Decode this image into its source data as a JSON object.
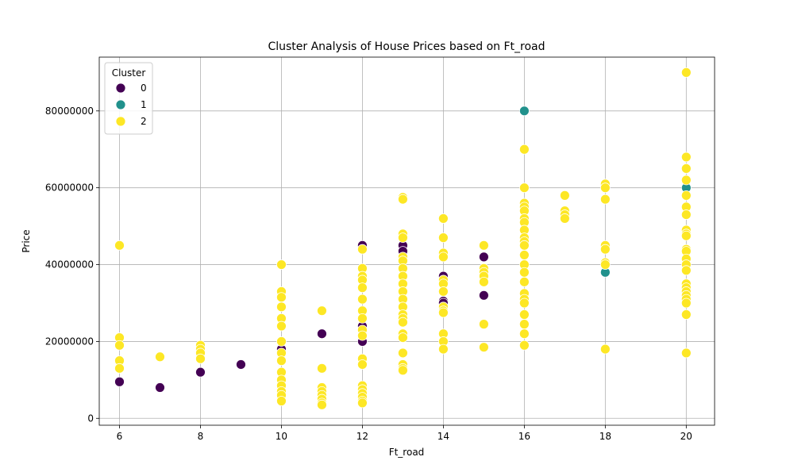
{
  "chart_data": {
    "type": "scatter",
    "title": "Cluster Analysis of House Prices based on Ft_road",
    "xlabel": "Ft_road",
    "ylabel": "Price",
    "xlim": [
      5.5,
      20.7
    ],
    "ylim": [
      -1800000,
      94000000
    ],
    "xticks": [
      6,
      8,
      10,
      12,
      14,
      16,
      18,
      20
    ],
    "yticks": [
      0,
      20000000,
      40000000,
      60000000,
      80000000
    ],
    "xtick_labels": [
      "6",
      "8",
      "10",
      "12",
      "14",
      "16",
      "18",
      "20"
    ],
    "ytick_labels": [
      "0",
      "20000000",
      "40000000",
      "60000000",
      "80000000"
    ],
    "grid": true,
    "legend": {
      "title": "Cluster",
      "placement": "top-left",
      "entries": [
        "0",
        "1",
        "2"
      ]
    },
    "series": [
      {
        "name": "0",
        "color": "#440154",
        "points": [
          [
            6,
            9500000
          ],
          [
            7,
            8000000
          ],
          [
            8,
            12000000
          ],
          [
            9,
            14000000
          ],
          [
            10,
            18000000
          ],
          [
            11,
            22000000
          ],
          [
            12,
            45000000
          ],
          [
            12,
            24000000
          ],
          [
            12,
            20000000
          ],
          [
            13,
            45000000
          ],
          [
            13,
            43500000
          ],
          [
            14,
            37000000
          ],
          [
            14,
            30500000
          ],
          [
            14,
            30000000
          ],
          [
            15,
            42000000
          ],
          [
            15,
            32000000
          ]
        ]
      },
      {
        "name": "1",
        "color": "#21918c",
        "points": [
          [
            16,
            80000000
          ],
          [
            20,
            60000000
          ],
          [
            18,
            38000000
          ]
        ]
      },
      {
        "name": "2",
        "color": "#fde725",
        "points": [
          [
            6,
            45000000
          ],
          [
            6,
            21000000
          ],
          [
            6,
            19000000
          ],
          [
            6,
            15000000
          ],
          [
            6,
            13000000
          ],
          [
            7,
            16000000
          ],
          [
            8,
            19000000
          ],
          [
            8,
            18000000
          ],
          [
            8,
            17000000
          ],
          [
            8,
            15500000
          ],
          [
            10,
            40000000
          ],
          [
            10,
            33000000
          ],
          [
            10,
            31500000
          ],
          [
            10,
            29000000
          ],
          [
            10,
            26000000
          ],
          [
            10,
            24000000
          ],
          [
            10,
            20000000
          ],
          [
            10,
            17000000
          ],
          [
            10,
            15000000
          ],
          [
            10,
            12000000
          ],
          [
            10,
            10000000
          ],
          [
            10,
            8500000
          ],
          [
            10,
            7000000
          ],
          [
            10,
            6000000
          ],
          [
            10,
            4500000
          ],
          [
            11,
            28000000
          ],
          [
            11,
            13000000
          ],
          [
            11,
            8000000
          ],
          [
            11,
            7000000
          ],
          [
            11,
            6000000
          ],
          [
            11,
            5000000
          ],
          [
            11,
            4000000
          ],
          [
            11,
            3500000
          ],
          [
            12,
            44000000
          ],
          [
            12,
            39000000
          ],
          [
            12,
            37000000
          ],
          [
            12,
            36000000
          ],
          [
            12,
            34000000
          ],
          [
            12,
            31000000
          ],
          [
            12,
            28000000
          ],
          [
            12,
            26000000
          ],
          [
            12,
            23000000
          ],
          [
            12,
            21500000
          ],
          [
            12,
            15500000
          ],
          [
            12,
            14000000
          ],
          [
            12,
            8500000
          ],
          [
            12,
            7500000
          ],
          [
            12,
            6500000
          ],
          [
            12,
            5500000
          ],
          [
            12,
            4500000
          ],
          [
            12,
            4000000
          ],
          [
            13,
            57500000
          ],
          [
            13,
            57000000
          ],
          [
            13,
            48000000
          ],
          [
            13,
            47000000
          ],
          [
            13,
            42000000
          ],
          [
            13,
            41000000
          ],
          [
            13,
            39000000
          ],
          [
            13,
            37000000
          ],
          [
            13,
            35000000
          ],
          [
            13,
            33000000
          ],
          [
            13,
            31000000
          ],
          [
            13,
            29000000
          ],
          [
            13,
            27000000
          ],
          [
            13,
            26000000
          ],
          [
            13,
            25000000
          ],
          [
            13,
            22000000
          ],
          [
            13,
            21000000
          ],
          [
            13,
            17000000
          ],
          [
            13,
            14000000
          ],
          [
            13,
            13000000
          ],
          [
            13,
            12500000
          ],
          [
            14,
            52000000
          ],
          [
            14,
            47000000
          ],
          [
            14,
            43000000
          ],
          [
            14,
            42000000
          ],
          [
            14,
            36000000
          ],
          [
            14,
            35000000
          ],
          [
            14,
            33000000
          ],
          [
            14,
            29000000
          ],
          [
            14,
            28000000
          ],
          [
            14,
            27500000
          ],
          [
            14,
            22000000
          ],
          [
            14,
            20000000
          ],
          [
            14,
            18000000
          ],
          [
            15,
            45000000
          ],
          [
            15,
            39000000
          ],
          [
            15,
            38000000
          ],
          [
            15,
            37000000
          ],
          [
            15,
            35500000
          ],
          [
            15,
            24500000
          ],
          [
            15,
            18500000
          ],
          [
            16,
            70000000
          ],
          [
            16,
            60000000
          ],
          [
            16,
            56000000
          ],
          [
            16,
            55000000
          ],
          [
            16,
            54000000
          ],
          [
            16,
            52000000
          ],
          [
            16,
            51000000
          ],
          [
            16,
            49000000
          ],
          [
            16,
            47000000
          ],
          [
            16,
            46000000
          ],
          [
            16,
            45000000
          ],
          [
            16,
            42500000
          ],
          [
            16,
            40000000
          ],
          [
            16,
            38000000
          ],
          [
            16,
            35500000
          ],
          [
            16,
            32500000
          ],
          [
            16,
            31000000
          ],
          [
            16,
            30000000
          ],
          [
            16,
            27000000
          ],
          [
            16,
            24500000
          ],
          [
            16,
            22000000
          ],
          [
            16,
            19000000
          ],
          [
            17,
            58000000
          ],
          [
            17,
            54000000
          ],
          [
            17,
            53000000
          ],
          [
            17,
            52000000
          ],
          [
            18,
            61000000
          ],
          [
            18,
            60000000
          ],
          [
            18,
            57000000
          ],
          [
            18,
            45000000
          ],
          [
            18,
            44000000
          ],
          [
            18,
            40500000
          ],
          [
            18,
            40000000
          ],
          [
            18,
            18000000
          ],
          [
            20,
            90000000
          ],
          [
            20,
            68000000
          ],
          [
            20,
            65000000
          ],
          [
            20,
            62000000
          ],
          [
            20,
            58000000
          ],
          [
            20,
            55000000
          ],
          [
            20,
            53000000
          ],
          [
            20,
            49000000
          ],
          [
            20,
            48000000
          ],
          [
            20,
            47500000
          ],
          [
            20,
            44000000
          ],
          [
            20,
            43500000
          ],
          [
            20,
            41500000
          ],
          [
            20,
            40000000
          ],
          [
            20,
            38500000
          ],
          [
            20,
            35000000
          ],
          [
            20,
            34000000
          ],
          [
            20,
            33000000
          ],
          [
            20,
            32000000
          ],
          [
            20,
            31000000
          ],
          [
            20,
            30000000
          ],
          [
            20,
            27000000
          ],
          [
            20,
            17000000
          ]
        ]
      }
    ]
  }
}
